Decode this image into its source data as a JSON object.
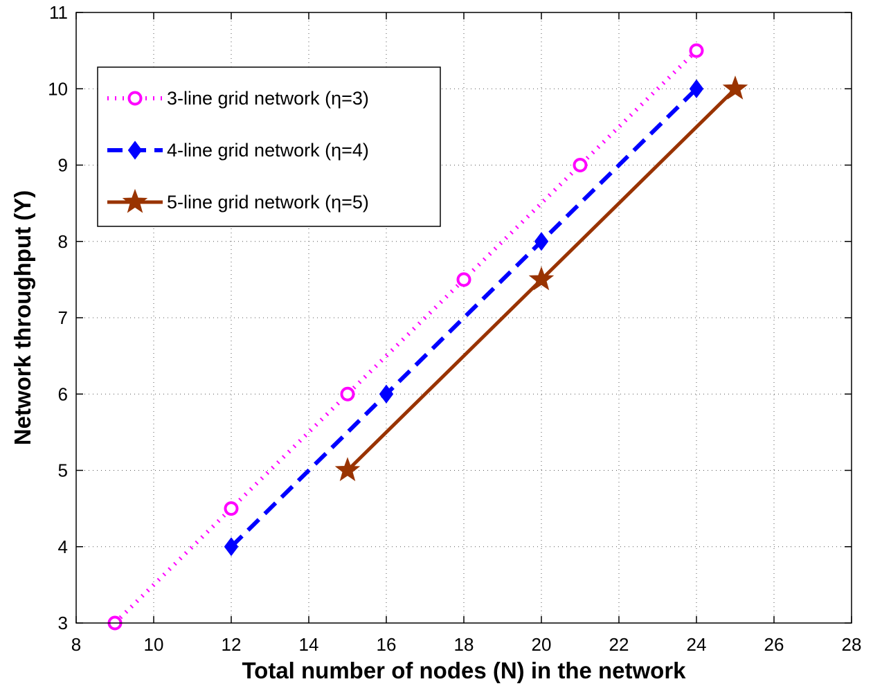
{
  "chart_data": {
    "type": "line",
    "xlabel": "Total number of nodes (N) in the network",
    "ylabel": "Network throughput (Y)",
    "xlim": [
      8,
      28
    ],
    "ylim": [
      3,
      11
    ],
    "xticks": [
      8,
      10,
      12,
      14,
      16,
      18,
      20,
      22,
      24,
      26,
      28
    ],
    "yticks": [
      3,
      4,
      5,
      6,
      7,
      8,
      9,
      10,
      11
    ],
    "grid": true,
    "legend_position": "top-left",
    "series": [
      {
        "name": "3-line grid network (η=3)",
        "x": [
          9,
          12,
          15,
          18,
          21,
          24
        ],
        "y": [
          3,
          4.5,
          6,
          7.5,
          9,
          10.5
        ],
        "color": "#ff00ff",
        "line_style": "dotted",
        "marker": "circle"
      },
      {
        "name": "4-line grid network (η=4)",
        "x": [
          12,
          16,
          20,
          24
        ],
        "y": [
          4,
          6,
          8,
          10
        ],
        "color": "#0000ff",
        "line_style": "dashed",
        "marker": "diamond"
      },
      {
        "name": "5-line grid network (η=5)",
        "x": [
          15,
          20,
          25
        ],
        "y": [
          5,
          7.5,
          10
        ],
        "color": "#993300",
        "line_style": "solid",
        "marker": "star"
      }
    ]
  }
}
